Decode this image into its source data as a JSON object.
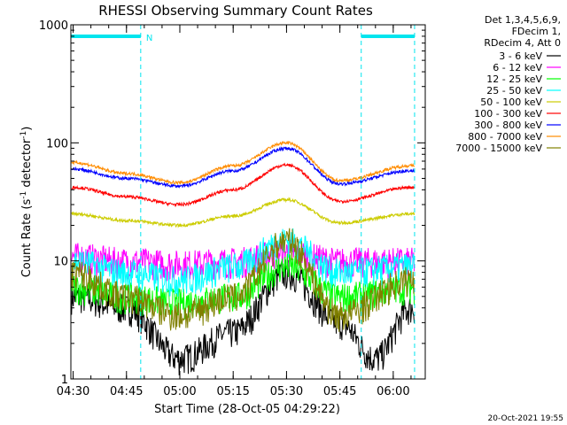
{
  "chart_data": {
    "type": "line",
    "title": "RHESSI Observing Summary Count Rates",
    "xlabel": "Start Time (28-Oct-05 04:29:22)",
    "ylabel": "Count Rate (s",
    "ylabel_sup1": "-1",
    "ylabel_mid": " detector",
    "ylabel_sup2": "-1",
    "ylabel_end": ")",
    "y_scale": "log",
    "ylim": [
      1,
      1000
    ],
    "xlim": [
      "04:29:22",
      "06:09"
    ],
    "x_tick_labels": [
      "04:30",
      "04:45",
      "05:00",
      "05:15",
      "05:30",
      "05:45",
      "06:00"
    ],
    "y_tick_labels": [
      "1",
      "10",
      "100",
      "1000"
    ],
    "legend_header": [
      "Det 1,3,4,5,6,9,",
      "FDecim 1,",
      "RDecim 4, Att 0"
    ],
    "legend_position": "outside-right",
    "night_label": "N",
    "night_intervals": [
      [
        "04:29:22",
        "04:49"
      ],
      [
        "05:51",
        "06:06"
      ]
    ],
    "timestamp": "20-Oct-2021 19:55",
    "series": [
      {
        "name": "3 - 6 keV",
        "color": "#000000",
        "points": [
          [
            "04:30",
            5
          ],
          [
            "04:45",
            4
          ],
          [
            "05:00",
            1.5
          ],
          [
            "05:15",
            2.5
          ],
          [
            "05:30",
            8
          ],
          [
            "05:45",
            3
          ],
          [
            "05:55",
            1.5
          ],
          [
            "06:05",
            4
          ]
        ]
      },
      {
        "name": "6 - 12 keV",
        "color": "#ff00ff",
        "points": [
          [
            "04:30",
            11
          ],
          [
            "04:45",
            10
          ],
          [
            "05:00",
            9.5
          ],
          [
            "05:15",
            10
          ],
          [
            "05:30",
            12
          ],
          [
            "05:45",
            10
          ],
          [
            "06:05",
            10
          ]
        ]
      },
      {
        "name": "12 - 25 keV",
        "color": "#00ff00",
        "points": [
          [
            "04:30",
            6
          ],
          [
            "04:45",
            5
          ],
          [
            "05:00",
            4.5
          ],
          [
            "05:15",
            5
          ],
          [
            "05:30",
            9
          ],
          [
            "05:45",
            5
          ],
          [
            "06:05",
            6
          ]
        ]
      },
      {
        "name": "25 - 50 keV",
        "color": "#00ffff",
        "points": [
          [
            "04:30",
            10
          ],
          [
            "04:45",
            8
          ],
          [
            "05:00",
            7
          ],
          [
            "05:15",
            9
          ],
          [
            "05:30",
            15
          ],
          [
            "05:45",
            8
          ],
          [
            "06:05",
            9
          ]
        ]
      },
      {
        "name": "50 - 100 keV",
        "color": "#cccc00",
        "points": [
          [
            "04:30",
            25
          ],
          [
            "04:45",
            22
          ],
          [
            "05:00",
            20
          ],
          [
            "05:15",
            24
          ],
          [
            "05:30",
            33
          ],
          [
            "05:45",
            21
          ],
          [
            "06:05",
            25
          ]
        ]
      },
      {
        "name": "100 - 300 keV",
        "color": "#ff0000",
        "points": [
          [
            "04:30",
            42
          ],
          [
            "04:45",
            35
          ],
          [
            "05:00",
            30
          ],
          [
            "05:15",
            40
          ],
          [
            "05:30",
            65
          ],
          [
            "05:45",
            32
          ],
          [
            "06:05",
            42
          ]
        ]
      },
      {
        "name": "300 - 800 keV",
        "color": "#0000ff",
        "points": [
          [
            "04:30",
            60
          ],
          [
            "04:45",
            50
          ],
          [
            "05:00",
            43
          ],
          [
            "05:15",
            58
          ],
          [
            "05:30",
            90
          ],
          [
            "05:45",
            45
          ],
          [
            "06:05",
            58
          ]
        ]
      },
      {
        "name": "800 - 7000 keV",
        "color": "#ff8c00",
        "points": [
          [
            "04:30",
            68
          ],
          [
            "04:45",
            55
          ],
          [
            "05:00",
            46
          ],
          [
            "05:15",
            64
          ],
          [
            "05:30",
            100
          ],
          [
            "05:45",
            48
          ],
          [
            "06:05",
            64
          ]
        ]
      },
      {
        "name": "7000 - 15000 keV",
        "color": "#808000",
        "points": [
          [
            "04:30",
            8
          ],
          [
            "04:45",
            5
          ],
          [
            "05:00",
            3.5
          ],
          [
            "05:15",
            5
          ],
          [
            "05:30",
            15
          ],
          [
            "05:45",
            3.5
          ],
          [
            "06:05",
            7
          ]
        ]
      }
    ]
  }
}
